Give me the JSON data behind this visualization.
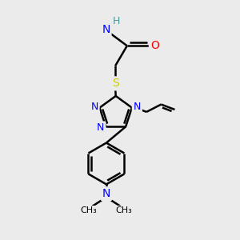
{
  "bg_color": "#ebebeb",
  "atom_colors": {
    "C": "#000000",
    "N": "#0000ff",
    "O": "#ff0000",
    "S": "#cccc00",
    "H": "#4a9999"
  },
  "bond_color": "#000000",
  "bond_width": 1.8,
  "figsize": [
    3.0,
    3.0
  ],
  "dpi": 100
}
